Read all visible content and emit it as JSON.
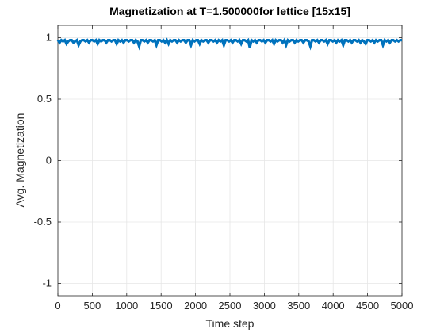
{
  "chart_data": {
    "type": "line",
    "title": "Magnetization at T=1.500000for lettice [15x15]",
    "xlabel": "Time step",
    "ylabel": "Avg. Magnetization",
    "xlim": [
      0,
      5000
    ],
    "ylim": [
      -1.1,
      1.1
    ],
    "xticks": [
      0,
      500,
      1000,
      1500,
      2000,
      2500,
      3000,
      3500,
      4000,
      4500,
      5000
    ],
    "xtick_labels": [
      "0",
      "500",
      "1000",
      "1500",
      "2000",
      "2500",
      "3000",
      "3500",
      "4000",
      "4500",
      "5000"
    ],
    "yticks": [
      -1,
      -0.5,
      0,
      0.5,
      1
    ],
    "ytick_labels": [
      "-1",
      "-0.5",
      "0",
      "0.5",
      "1"
    ],
    "grid": true,
    "series": [
      {
        "color": "#0072BD",
        "x_range": [
          0,
          5000
        ],
        "values": [
          0.98,
          0.96,
          0.98,
          0.97,
          0.98,
          0.95,
          0.97,
          0.98,
          0.98,
          0.96,
          0.97,
          0.98,
          0.94,
          0.97,
          0.98,
          0.98,
          0.97,
          0.98,
          0.96,
          0.98,
          0.98,
          0.97,
          0.98,
          0.95,
          0.98,
          0.97,
          0.98,
          0.98,
          0.96,
          0.98,
          0.98,
          0.97,
          0.98,
          0.98,
          0.95,
          0.98,
          0.97,
          0.98,
          0.96,
          0.98,
          0.98,
          0.97,
          0.98,
          0.98,
          0.96,
          0.98,
          0.97,
          0.93,
          0.98,
          0.98,
          0.97,
          0.98,
          0.96,
          0.98,
          0.98,
          0.97,
          0.98,
          0.94,
          0.98,
          0.98,
          0.97,
          0.98,
          0.96,
          0.98,
          0.95,
          0.98,
          0.97,
          0.98,
          0.98,
          0.96,
          0.98,
          0.97,
          0.98,
          0.98,
          0.96,
          0.98,
          0.98,
          0.94,
          0.98,
          0.97,
          0.98,
          0.98,
          0.95,
          0.98,
          0.97,
          0.98,
          0.98,
          0.96,
          0.98,
          0.98,
          0.97,
          0.98,
          0.96,
          0.98,
          0.97,
          0.98,
          0.94,
          0.98,
          0.98,
          0.97,
          0.98,
          0.96,
          0.98,
          0.98,
          0.97,
          0.98,
          0.95,
          0.98,
          0.98,
          0.97,
          0.98,
          0.92,
          0.98,
          0.97,
          0.98,
          0.96,
          0.98,
          0.98,
          0.97,
          0.98,
          0.96,
          0.98,
          0.98,
          0.97,
          0.98,
          0.95,
          0.98,
          0.97,
          0.98,
          0.98,
          0.96,
          0.98,
          0.94,
          0.98,
          0.97,
          0.98,
          0.98,
          0.96,
          0.98,
          0.97,
          0.98,
          0.98,
          0.96,
          0.98,
          0.98,
          0.97,
          0.93,
          0.98,
          0.98,
          0.97,
          0.98,
          0.96,
          0.98,
          0.98,
          0.97,
          0.98,
          0.95,
          0.98,
          0.98,
          0.97,
          0.98,
          0.96,
          0.98,
          0.97,
          0.98,
          0.94,
          0.98,
          0.98,
          0.97,
          0.98,
          0.96,
          0.98,
          0.98,
          0.97,
          0.98,
          0.96,
          0.98,
          0.97,
          0.95,
          0.98,
          0.98,
          0.97,
          0.98,
          0.96,
          0.98,
          0.97,
          0.98,
          0.98,
          0.94,
          0.98,
          0.97,
          0.98,
          0.96,
          0.98,
          0.98,
          0.97,
          0.98,
          0.97,
          0.98,
          0.98
        ]
      }
    ]
  }
}
